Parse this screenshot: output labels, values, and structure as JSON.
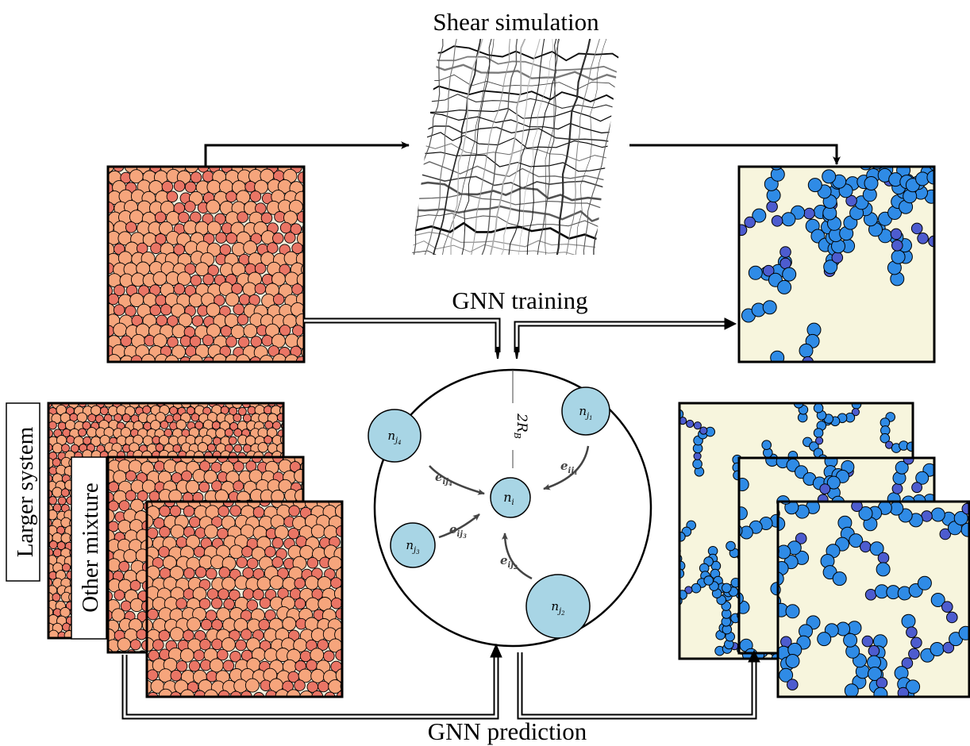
{
  "labels": {
    "shear_simulation": "Shear simulation",
    "gnn_training": "GNN training",
    "gnn_prediction": "GNN prediction",
    "larger_system": "Larger system",
    "other_mixture": "Other mixture"
  },
  "graph": {
    "radius_label": "2R",
    "radius_sub": "B",
    "center_node": {
      "base": "n",
      "sub": "i"
    },
    "neighbors": [
      {
        "id": "j1",
        "base": "n",
        "sub": "j",
        "subsub": "1"
      },
      {
        "id": "j2",
        "base": "n",
        "sub": "j",
        "subsub": "2"
      },
      {
        "id": "j3",
        "base": "n",
        "sub": "j",
        "subsub": "3"
      },
      {
        "id": "j4",
        "base": "n",
        "sub": "j",
        "subsub": "4"
      }
    ],
    "edges": [
      {
        "id": "ij1",
        "base": "e",
        "sub": "ij",
        "subsub": "1"
      },
      {
        "id": "ij2",
        "base": "e",
        "sub": "ij",
        "subsub": "2"
      },
      {
        "id": "ij3",
        "base": "e",
        "sub": "ij",
        "subsub": "3"
      },
      {
        "id": "ij4",
        "base": "e",
        "sub": "ij",
        "subsub": "4"
      }
    ]
  },
  "colors": {
    "particle_fill": "#f6a57c",
    "particle_fill_small": "#ea7565",
    "particle_bg": "#f3f0dc",
    "blue_particle": "#2f8be6",
    "blue_particle_dark": "#4d5ccf",
    "panel_bg": "#f7f5dd",
    "node_fill": "#a8d5e5",
    "arrow": "#000000"
  }
}
